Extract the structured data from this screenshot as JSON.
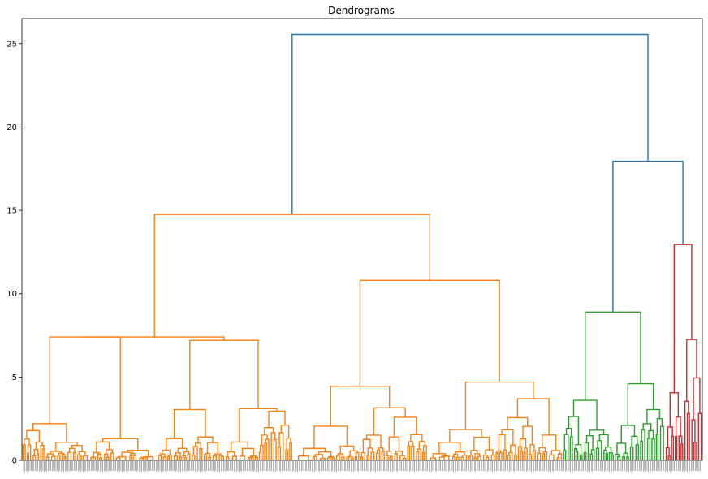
{
  "chart_data": {
    "type": "dendrogram",
    "title": "Dendrograms",
    "xlabel": "",
    "ylabel": "",
    "ylim": [
      0,
      26.5
    ],
    "yticks": [
      0,
      5,
      10,
      15,
      20,
      25
    ],
    "grid": false,
    "leaf_labels_legible": false,
    "colors": {
      "orange": "#ff7f0e",
      "green": "#2ca02c",
      "red": "#d62728",
      "blue": "#1f77b4"
    },
    "clusters": [
      {
        "color": "orange",
        "root_height": 14.75,
        "leaf_fraction_range": [
          0.0,
          0.795
        ],
        "subclusters": [
          {
            "height": 7.4,
            "children": [
              {
                "height": 7.4,
                "children": [
                  {
                    "height": 2.2
                  },
                  {
                    "height": 1.3
                  }
                ]
              },
              {
                "height": 7.2,
                "children": [
                  {
                    "height": 3.05,
                    "children": [
                      {
                        "height": 1.3
                      },
                      {
                        "height": 1.4
                      }
                    ]
                  },
                  {
                    "height": 3.1,
                    "children": [
                      {
                        "height": 1.1
                      },
                      {
                        "height": 2.95
                      }
                    ]
                  }
                ]
              }
            ]
          },
          {
            "height": 10.8,
            "children": [
              {
                "height": 4.45,
                "children": [
                  {
                    "height": 2.05
                  },
                  {
                    "height": 3.15
                  }
                ]
              },
              {
                "height": 4.7,
                "children": [
                  {
                    "height": 1.85
                  },
                  {
                    "height": 3.7
                  }
                ]
              }
            ]
          }
        ]
      },
      {
        "color": "green",
        "root_height": 8.9,
        "leaf_fraction_range": [
          0.795,
          0.945
        ],
        "subclusters": [
          {
            "height": 3.6
          },
          {
            "height": 4.6,
            "children": [
              {
                "height": 2.1
              },
              {
                "height": 3.05
              }
            ]
          }
        ]
      },
      {
        "color": "red",
        "root_height": 12.95,
        "leaf_fraction_range": [
          0.945,
          1.0
        ],
        "subclusters": [
          {
            "height": 4.05,
            "children": [
              {
                "height": 2.0
              },
              {
                "height": 2.6
              }
            ]
          },
          {
            "height": 7.25
          }
        ]
      }
    ],
    "top_links": [
      {
        "color": "blue",
        "height": 17.95,
        "joins": [
          "green",
          "red"
        ]
      },
      {
        "color": "blue",
        "height": 25.55,
        "joins": [
          "orange",
          "green+red"
        ]
      }
    ]
  }
}
